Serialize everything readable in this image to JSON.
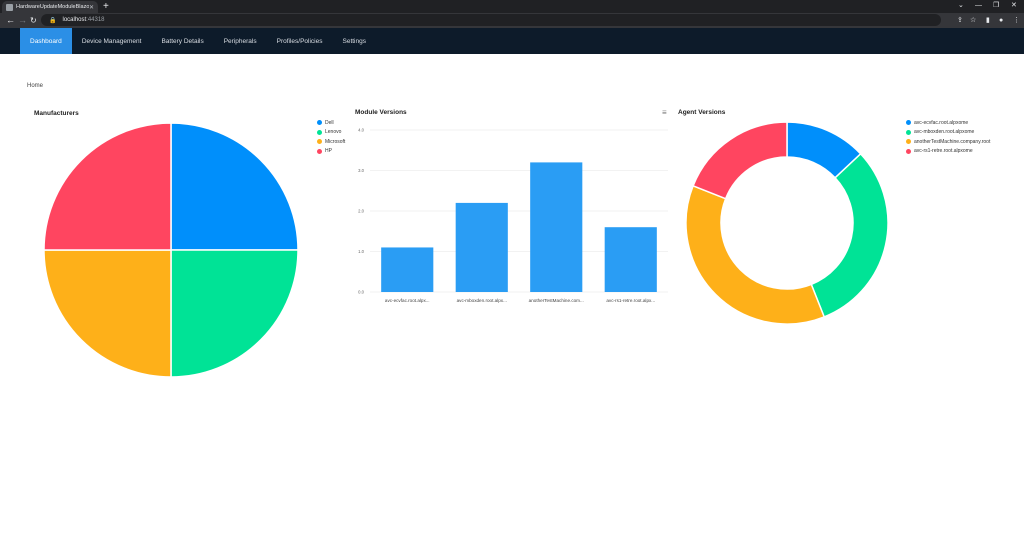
{
  "browser": {
    "tab_title": "HardwareUpdateModuleBlazor",
    "url_host": "localhost",
    "url_port": ":44318"
  },
  "nav": {
    "items": [
      {
        "label": "Dashboard",
        "active": true
      },
      {
        "label": "Device Management",
        "active": false
      },
      {
        "label": "Battery Details",
        "active": false
      },
      {
        "label": "Peripherals",
        "active": false
      },
      {
        "label": "Profiles/Policies",
        "active": false
      },
      {
        "label": "Settings",
        "active": false
      }
    ]
  },
  "breadcrumb": "Home",
  "colors": {
    "blue": "#008ffb",
    "green": "#00e396",
    "orange": "#feb019",
    "red": "#ff4560",
    "bar": "#2a9df4"
  },
  "chart_data": [
    {
      "type": "pie",
      "title": "Manufacturers",
      "labels": [
        "Dell",
        "Lenovo",
        "Microsoft",
        "HP"
      ],
      "values": [
        1,
        1,
        1,
        1
      ],
      "legend": "top-right"
    },
    {
      "type": "bar",
      "title": "Module Versions",
      "categories": [
        "avc-ecvfac.root.alpx...",
        "avc-mboxden.root.alpx...",
        "anotherTestMachine.com...",
        "avc-rs1-retre.root.alpx..."
      ],
      "values": [
        1.1,
        2.2,
        3.2,
        1.6
      ],
      "yticks": [
        "0.0",
        "1.0",
        "2.0",
        "3.0",
        "4.0"
      ],
      "ylim": [
        0,
        4
      ],
      "grid": true
    },
    {
      "type": "pie",
      "title": "Agent Versions",
      "labels": [
        "avc-ecvfac.root.alpxome",
        "avc-mboxden.root.alpxome",
        "anotherTestMachine.company.root",
        "avc-rs1-retre.root.alpxome"
      ],
      "values": [
        13,
        31,
        37,
        19
      ],
      "donut": true,
      "legend": "top-right"
    }
  ]
}
